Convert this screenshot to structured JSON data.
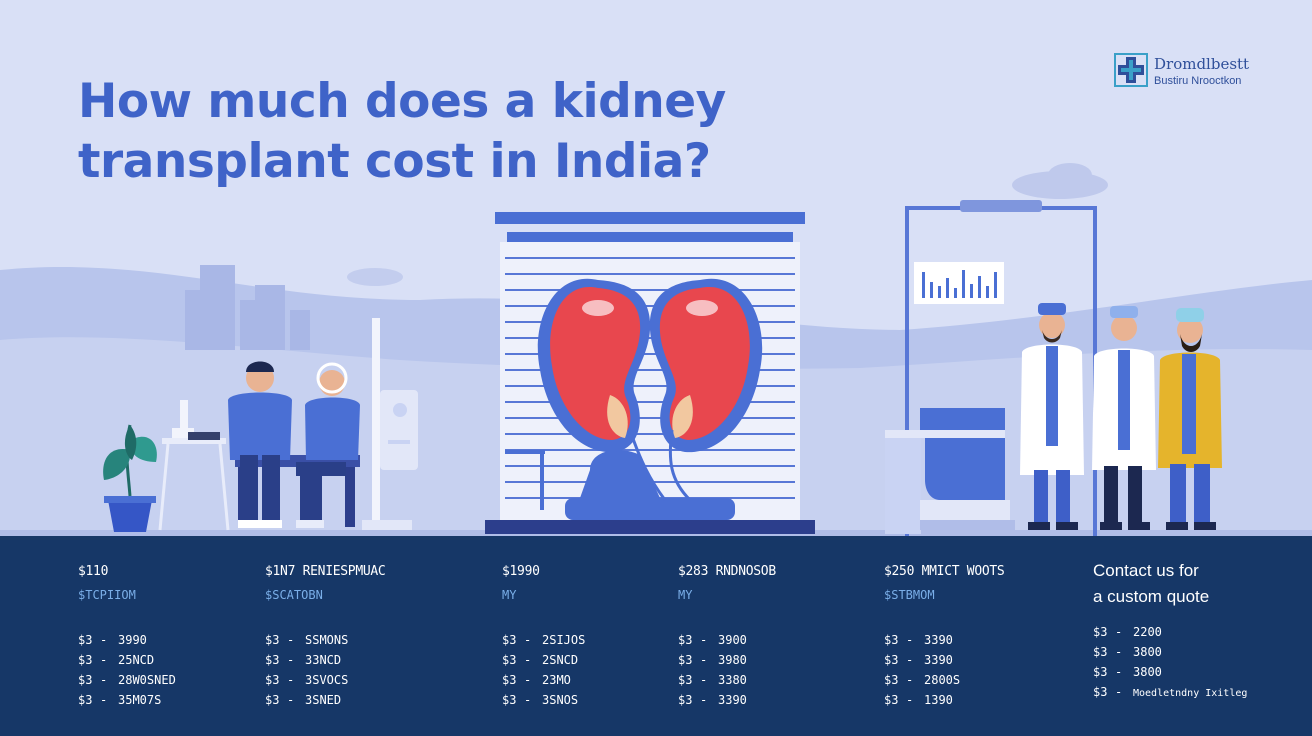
{
  "title_line1": "How much does a kidney",
  "title_line2": "transplant cost in India?",
  "brand": {
    "name": "Dromdlbestt",
    "subtitle": "Bustiru Nrooctkon",
    "icon": "medical-cross-logo"
  },
  "colors": {
    "background": "#d9e0f6",
    "title": "#3f63c8",
    "panel": "#163767",
    "kidney": "#e8474e",
    "accent_blue": "#4a6fd4",
    "doctor_coat": "#ffffff",
    "coat_yellow": "#e5b42c"
  },
  "scene_icons": [
    "city-skyline",
    "plant-icon",
    "microscope-icon",
    "patient-couple",
    "iv-stand",
    "kidney-pair-illustration",
    "monitor-chart",
    "hospital-bed",
    "doctor-group"
  ],
  "pricing_columns": [
    {
      "head": "$110",
      "sub": "$TCPIIOM",
      "items": [
        {
          "currency": "$3",
          "value": "3990"
        },
        {
          "currency": "$3",
          "value": "25NCD"
        },
        {
          "currency": "$3",
          "value": "28W0SNED"
        },
        {
          "currency": "$3",
          "value": "35M07S"
        }
      ]
    },
    {
      "head": "$1N7 RENIESPMUAC",
      "sub": "$SCATOBN",
      "items": [
        {
          "currency": "$3",
          "value": "SSMONS"
        },
        {
          "currency": "$3",
          "value": "33NCD"
        },
        {
          "currency": "$3",
          "value": "3SVOCS"
        },
        {
          "currency": "$3",
          "value": "3SNED"
        }
      ]
    },
    {
      "head": "$1990",
      "sub": "MY",
      "items": [
        {
          "currency": "$3",
          "value": "2SIJOS"
        },
        {
          "currency": "$3",
          "value": "2SNCD"
        },
        {
          "currency": "$3",
          "value": "23MO"
        },
        {
          "currency": "$3",
          "value": "3SNOS"
        }
      ]
    },
    {
      "head": "$283 RNDNOSOB",
      "sub": "MY",
      "items": [
        {
          "currency": "$3",
          "value": "3900"
        },
        {
          "currency": "$3",
          "value": "3980"
        },
        {
          "currency": "$3",
          "value": "3380"
        },
        {
          "currency": "$3",
          "value": "3390"
        }
      ]
    },
    {
      "head": "$250 MMICT WOOTS",
      "sub": "$STBMOM",
      "items": [
        {
          "currency": "$3",
          "value": "3390"
        },
        {
          "currency": "$3",
          "value": "3390"
        },
        {
          "currency": "$3",
          "value": "2800S"
        },
        {
          "currency": "$3",
          "value": "1390"
        }
      ]
    }
  ],
  "contact": {
    "line1": "Contact us for",
    "line2": "a custom quote",
    "items": [
      {
        "currency": "$3",
        "value": "2200"
      },
      {
        "currency": "$3",
        "value": "3800"
      },
      {
        "currency": "$3",
        "value": "3800"
      }
    ],
    "note_currency": "$3",
    "note": "Moedletndny Ixitleg"
  }
}
